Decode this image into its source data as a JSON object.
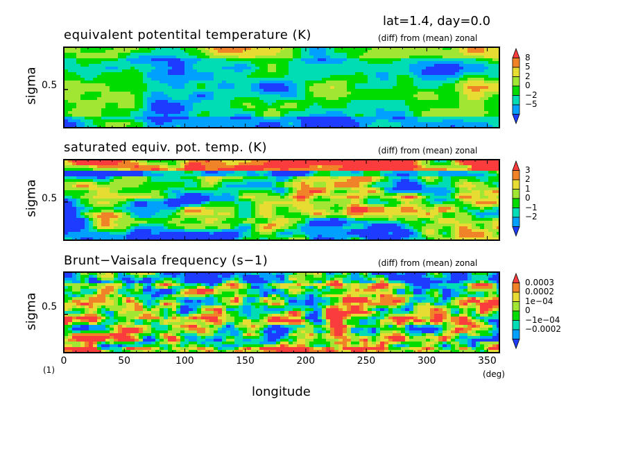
{
  "header": {
    "info": "lat=1.4, day=0.0"
  },
  "panels": [
    {
      "title": "equivalent potentital temperature (K)",
      "subtitle": "(diff) from (mean) zonal",
      "ylabel": "sigma",
      "ytick": "0.5",
      "colorbar": [
        "8",
        "5",
        "2",
        "0",
        "−2",
        "−5"
      ]
    },
    {
      "title": "saturated equiv. pot. temp. (K)",
      "subtitle": "(diff) from (mean) zonal",
      "ylabel": "sigma",
      "ytick": "0.5",
      "colorbar": [
        "3",
        "2",
        "1",
        "0",
        "−1",
        "−2"
      ]
    },
    {
      "title": "Brunt−Vaisala frequency (s−1)",
      "subtitle": "(diff) from (mean) zonal",
      "ylabel": "sigma",
      "ytick": "0.5",
      "colorbar": [
        "0.0003",
        "0.0002",
        "1e−04",
        "0",
        "−1e−04",
        "−0.0002"
      ]
    }
  ],
  "xaxis": {
    "label": "longitude",
    "unit": "(deg)",
    "ticks": [
      "0",
      "50",
      "100",
      "150",
      "200",
      "250",
      "300",
      "350"
    ],
    "corner": "(1)"
  },
  "colors": [
    "#1e3cff",
    "#00a0ff",
    "#00dcb4",
    "#00dc00",
    "#a0e632",
    "#e6dc32",
    "#f08228",
    "#fa3c3c"
  ],
  "chart_data": [
    {
      "type": "heatmap",
      "title": "equivalent potentital temperature (K)",
      "xlabel": "longitude",
      "ylabel": "sigma",
      "xlim": [
        0,
        360
      ],
      "levels": [
        -5,
        -2,
        0,
        2,
        5,
        8
      ]
    },
    {
      "type": "heatmap",
      "title": "saturated equiv. pot. temp. (K)",
      "xlabel": "longitude",
      "ylabel": "sigma",
      "xlim": [
        0,
        360
      ],
      "levels": [
        -2,
        -1,
        0,
        1,
        2,
        3
      ]
    },
    {
      "type": "heatmap",
      "title": "Brunt−Vaisala frequency (s−1)",
      "xlabel": "longitude",
      "ylabel": "sigma",
      "xlim": [
        0,
        360
      ],
      "levels": [
        -0.0002,
        -0.0001,
        0,
        0.0001,
        0.0002,
        0.0003
      ]
    }
  ]
}
